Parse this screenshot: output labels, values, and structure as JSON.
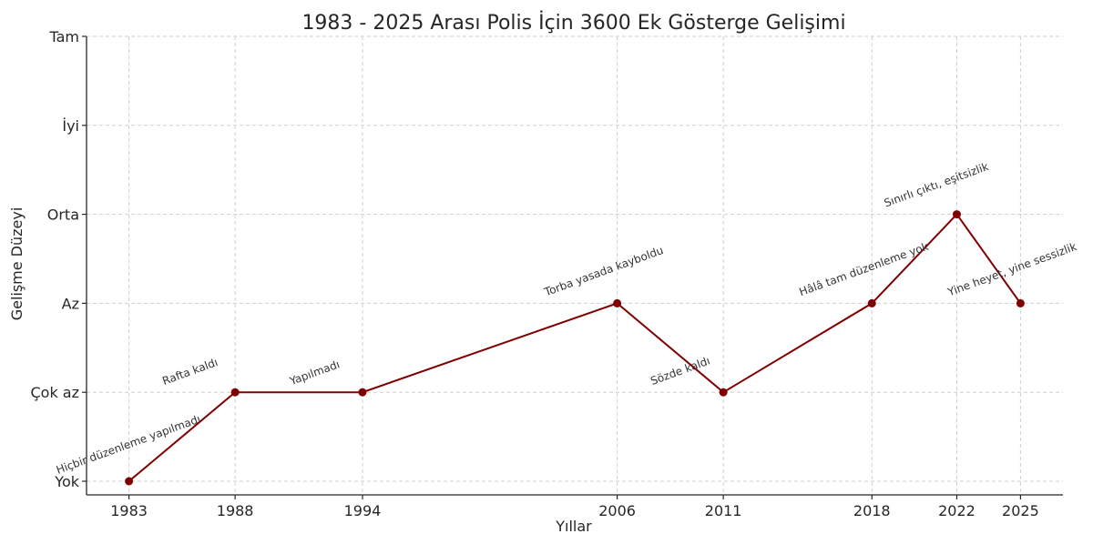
{
  "chart_data": {
    "type": "line",
    "title": "1983 - 2025 Arası Polis İçin 3600 Ek Gösterge Gelişimi",
    "xlabel": "Yıllar",
    "ylabel": "Gelişme Düzeyi",
    "x": [
      1983,
      1988,
      1994,
      2006,
      2011,
      2018,
      2022,
      2025
    ],
    "y_levels": [
      "Yok",
      "Çok az",
      "Az",
      "Orta",
      "İyi",
      "Tam"
    ],
    "series": [
      {
        "values": [
          0,
          1,
          1,
          2,
          1,
          2,
          3,
          2
        ],
        "color": "#800000"
      }
    ],
    "annotations": [
      "Hiçbir düzenleme yapılmadı",
      "Rafta kaldı",
      "Yapılmadı",
      "Torba yasada kayboldu",
      "Sözde kaldı",
      "Hâlâ tam düzenleme yok",
      "Sınırlı çıktı, eşitsizlik",
      "Yine heyet, yine sessizlik"
    ],
    "xlim": [
      1981,
      2027
    ],
    "ylim": [
      -0.15,
      5
    ],
    "grid": true
  }
}
